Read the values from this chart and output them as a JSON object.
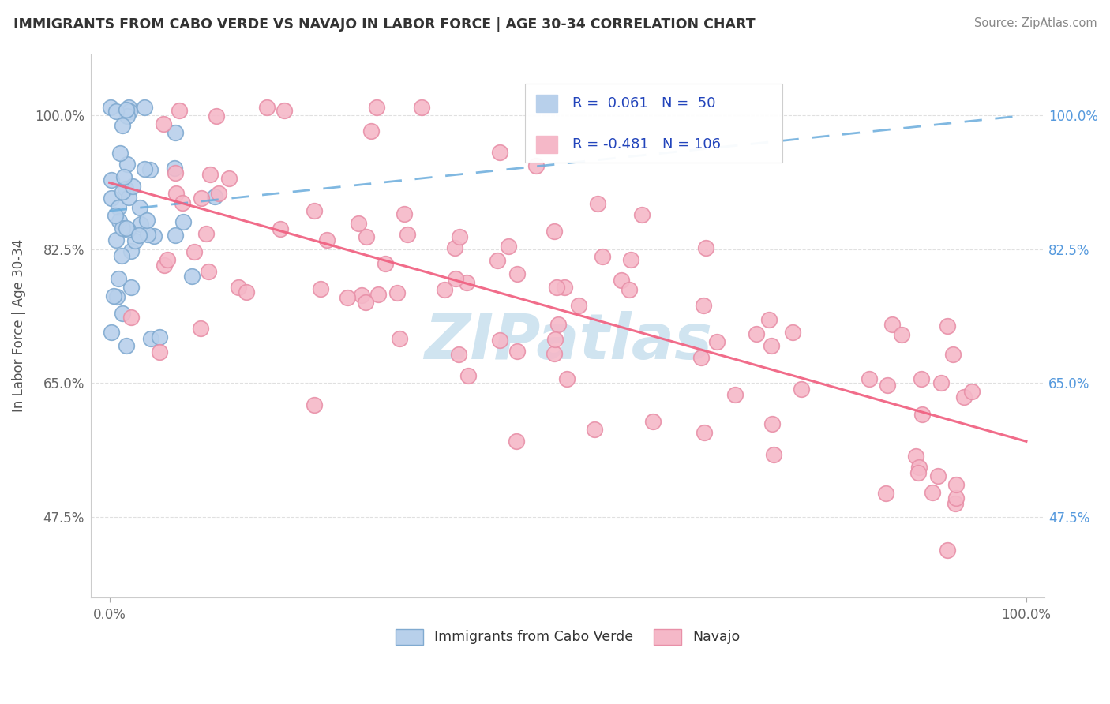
{
  "title": "IMMIGRANTS FROM CABO VERDE VS NAVAJO IN LABOR FORCE | AGE 30-34 CORRELATION CHART",
  "source": "Source: ZipAtlas.com",
  "ylabel": "In Labor Force | Age 30-34",
  "xlim": [
    -0.02,
    1.02
  ],
  "ylim": [
    0.37,
    1.08
  ],
  "yticks": [
    0.475,
    0.65,
    0.825,
    1.0
  ],
  "ytick_labels": [
    "47.5%",
    "65.0%",
    "82.5%",
    "100.0%"
  ],
  "xticks": [
    0.0,
    1.0
  ],
  "xtick_labels": [
    "0.0%",
    "100.0%"
  ],
  "r_blue": 0.061,
  "n_blue": 50,
  "r_pink": -0.481,
  "n_pink": 106,
  "blue_color": "#b8d0eb",
  "pink_color": "#f5b8c8",
  "blue_edge": "#80aad0",
  "pink_edge": "#e890a8",
  "trend_blue_color": "#6aacdc",
  "trend_pink_color": "#f06080",
  "watermark_color": "#d0e4f0",
  "background": "#ffffff",
  "legend_text_color": "#2244bb",
  "legend_label_color": "#333333"
}
